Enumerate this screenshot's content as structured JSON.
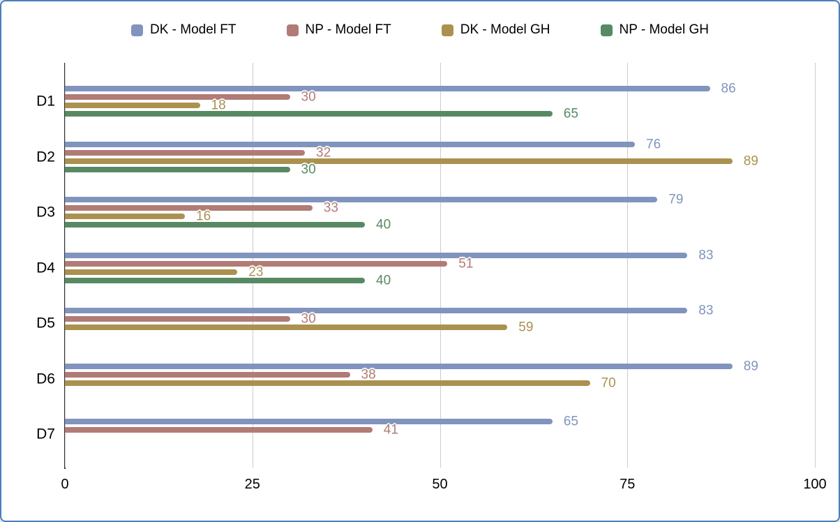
{
  "frame": {
    "border_color": "#4A7EBC",
    "background": "#FFFFFF"
  },
  "chart_data": {
    "type": "bar",
    "orientation": "horizontal",
    "title": "",
    "categories": [
      "D1",
      "D2",
      "D3",
      "D4",
      "D5",
      "D6",
      "D7"
    ],
    "series": [
      {
        "name": "DK - Model FT",
        "color": "#8094BE",
        "values": [
          86,
          76,
          79,
          83,
          83,
          89,
          65
        ]
      },
      {
        "name": "NP - Model FT",
        "color": "#B17B76",
        "values": [
          30,
          32,
          33,
          51,
          30,
          38,
          41
        ]
      },
      {
        "name": "DK - Model GH",
        "color": "#AB9150",
        "values": [
          18,
          89,
          16,
          23,
          59,
          70,
          null
        ]
      },
      {
        "name": "NP - Model GH",
        "color": "#578A63",
        "values": [
          65,
          30,
          40,
          40,
          null,
          null,
          null
        ]
      }
    ],
    "xlim": [
      0,
      100
    ],
    "x_ticks": [
      0,
      25,
      50,
      75,
      100
    ],
    "grid": true,
    "legend_position": "top",
    "data_labels": true,
    "axis_color": "#333333",
    "gridline_color": "#CCCCCC",
    "text_color": "#000000"
  }
}
